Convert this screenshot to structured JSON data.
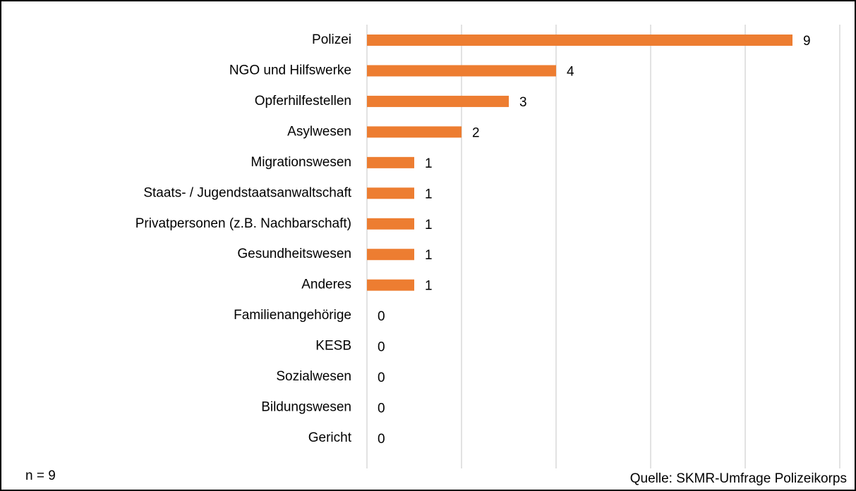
{
  "chart_data": {
    "type": "bar",
    "orientation": "horizontal",
    "categories": [
      "Polizei",
      "NGO und Hilfswerke",
      "Opferhilfestellen",
      "Asylwesen",
      "Migrationswesen",
      "Staats- / Jugendstaatsanwaltschaft",
      "Privatpersonen (z.B. Nachbarschaft)",
      "Gesundheitswesen",
      "Anderes",
      "Familienangehörige",
      "KESB",
      "Sozialwesen",
      "Bildungswesen",
      "Gericht"
    ],
    "values": [
      9,
      4,
      3,
      2,
      1,
      1,
      1,
      1,
      1,
      0,
      0,
      0,
      0,
      0
    ],
    "color": "#ed7d31",
    "xlim": [
      0,
      10
    ],
    "xticks": [
      0,
      2,
      4,
      6,
      8,
      10
    ],
    "grid": true,
    "annotations": [
      "n = 9",
      "Quelle: SKMR-Umfrage Polizeikorps"
    ]
  }
}
